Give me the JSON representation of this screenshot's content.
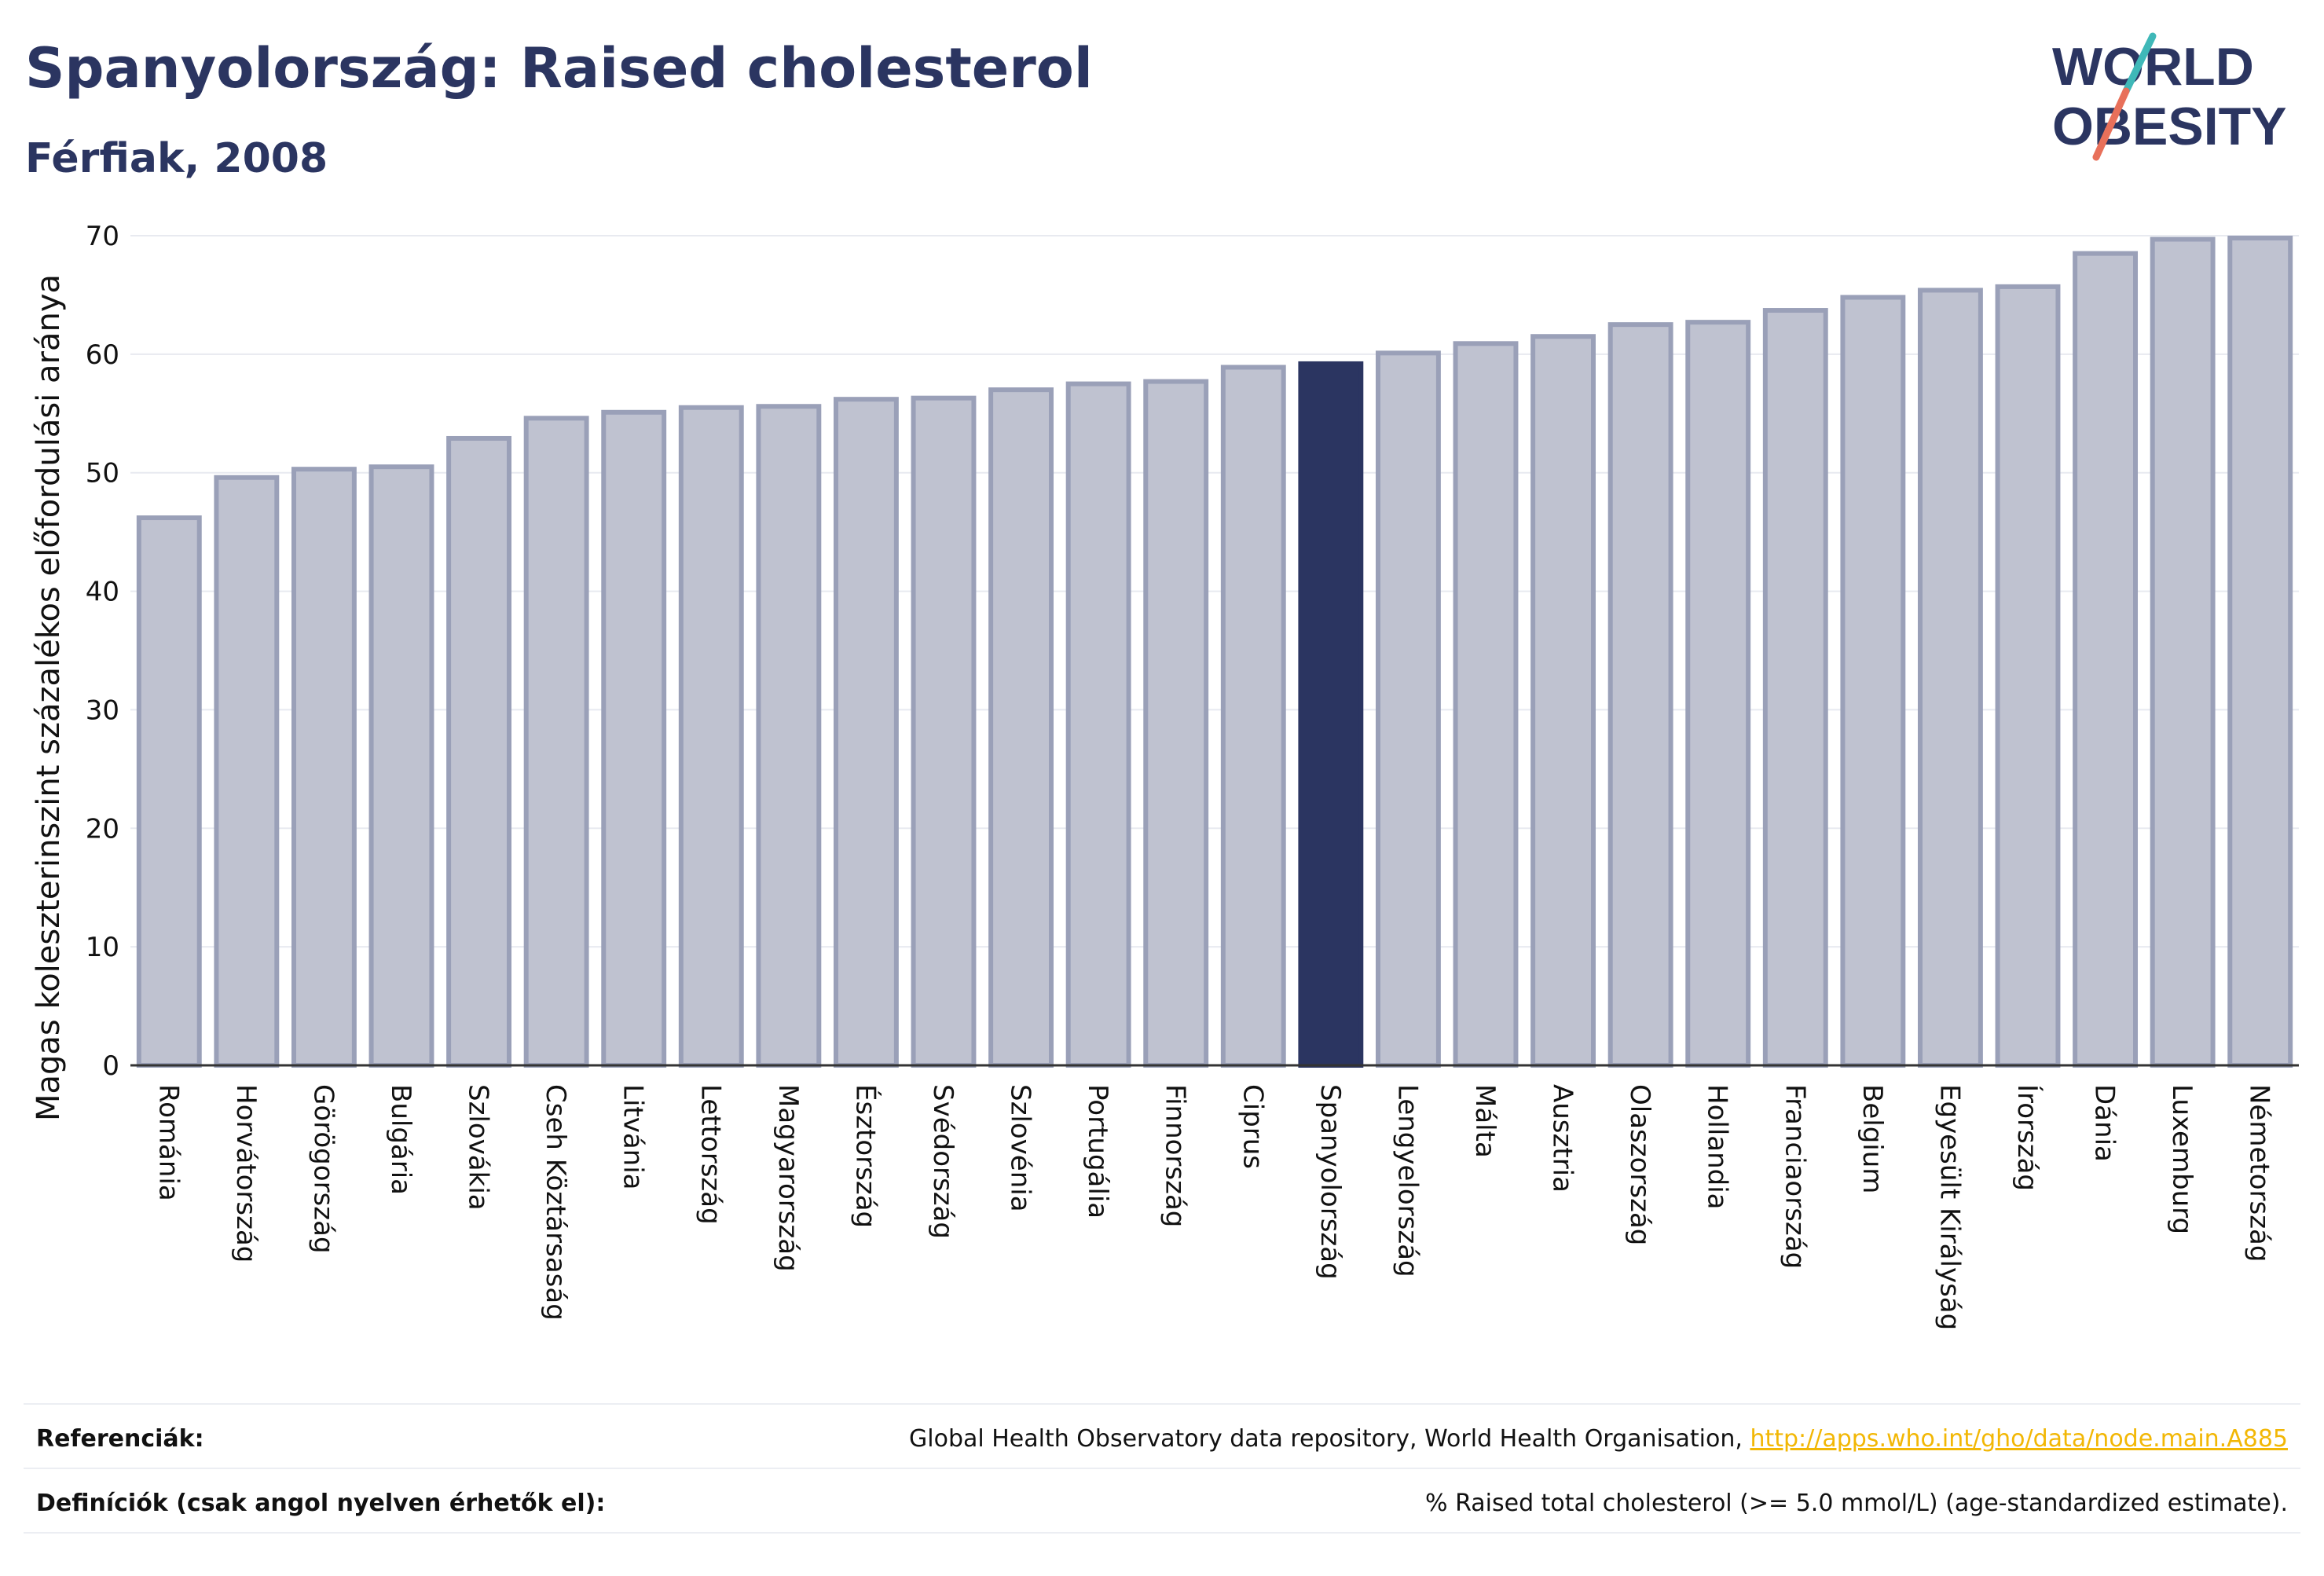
{
  "header": {
    "title": "Spanyolország: Raised cholesterol",
    "subtitle": "Férfiak, 2008"
  },
  "logo": {
    "line1": "WORLD",
    "line2": "OBESITY",
    "colors": {
      "text": "#2b3561",
      "slash_top": "#3fb8b8",
      "slash_bottom": "#e8705a"
    }
  },
  "colors": {
    "bar_fill": "#bfc2d0",
    "bar_edge": "#9aa0b8",
    "highlight": "#2b3561",
    "grid": "#e8eaf0",
    "axis": "#333333"
  },
  "chart_data": {
    "type": "bar",
    "ylabel": "Magas koleszterinszint százalékos előfordulási aránya",
    "ylim": [
      0,
      70
    ],
    "yticks": [
      0,
      10,
      20,
      30,
      40,
      50,
      60,
      70
    ],
    "grid": true,
    "highlight_category": "Spanyolország",
    "categories": [
      "Románia",
      "Horvátország",
      "Görögország",
      "Bulgária",
      "Szlovákia",
      "Cseh Köztársaság",
      "Litvánia",
      "Lettország",
      "Magyarország",
      "Észtország",
      "Svédország",
      "Szlovénia",
      "Portugália",
      "Finnország",
      "Ciprus",
      "Spanyolország",
      "Lengyelország",
      "Málta",
      "Ausztria",
      "Olaszország",
      "Hollandia",
      "Franciaország",
      "Belgium",
      "Egyesült Királyság",
      "Írország",
      "Dánia",
      "Luxemburg",
      "Németország"
    ],
    "values": [
      46.2,
      49.6,
      50.3,
      50.5,
      52.9,
      54.6,
      55.1,
      55.5,
      55.6,
      56.2,
      56.3,
      57.0,
      57.5,
      57.7,
      58.9,
      59.2,
      60.1,
      60.9,
      61.5,
      62.5,
      62.7,
      63.7,
      64.8,
      65.4,
      65.7,
      68.5,
      69.7,
      69.8
    ]
  },
  "footer": {
    "references_label": "Referenciák:",
    "references_text": "Global Health Observatory data repository, World Health Organisation, ",
    "references_link": "http://apps.who.int/gho/data/node.main.A885",
    "definitions_label": "Definíciók (csak angol nyelven érhetők el):",
    "definitions_text": "% Raised total cholesterol (>= 5.0 mmol/L) (age-standardized estimate)."
  }
}
